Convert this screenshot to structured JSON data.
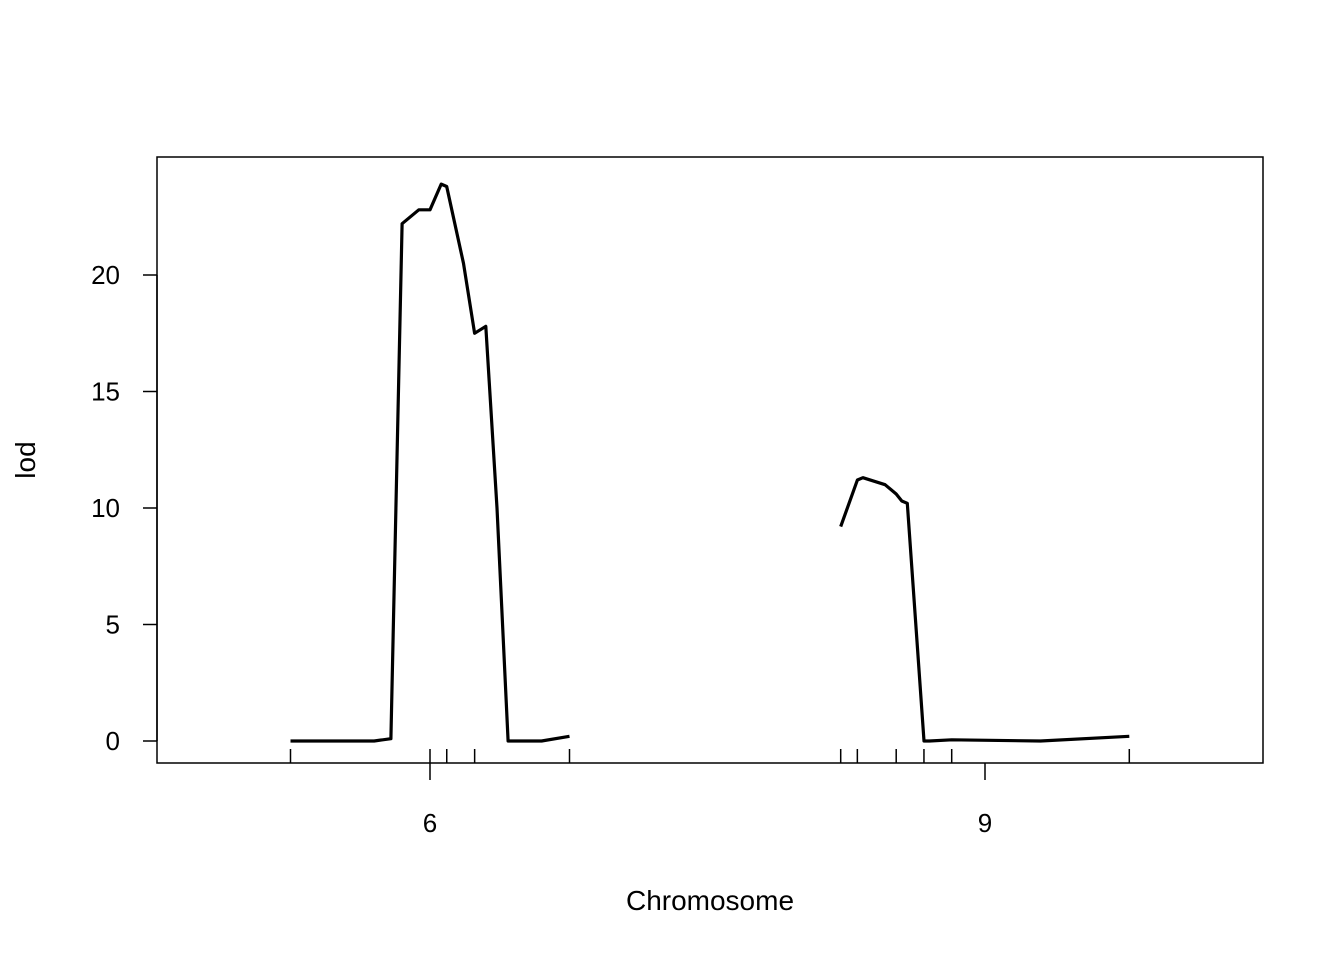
{
  "chart_data": {
    "type": "line",
    "xlabel": "Chromosome",
    "ylabel": "lod",
    "ylim": [
      -1,
      25
    ],
    "y_ticks": [
      0,
      5,
      10,
      15,
      20
    ],
    "chromosomes": [
      {
        "label": "6",
        "range": [
          -25,
          25
        ],
        "marker_positions": [
          -25,
          0,
          3,
          8,
          25
        ],
        "positions": [
          -25,
          -17,
          -10,
          -7,
          -5,
          -2,
          0,
          2,
          3,
          6,
          8,
          10,
          12,
          14,
          20,
          25
        ],
        "lod": [
          0,
          0,
          0,
          0.1,
          22.2,
          22.8,
          22.8,
          23.9,
          23.8,
          20.5,
          17.5,
          17.8,
          10,
          0,
          0,
          0.2
        ]
      },
      {
        "label": "9",
        "range": [
          -26,
          26
        ],
        "marker_positions": [
          -26,
          -23,
          -16,
          -11,
          -6,
          26
        ],
        "positions": [
          -26,
          -23,
          -22,
          -18,
          -16,
          -15,
          -14,
          -11,
          -10,
          -6,
          10,
          26
        ],
        "lod": [
          9.2,
          11.2,
          11.3,
          11.0,
          10.6,
          10.3,
          10.2,
          0,
          0,
          0.05,
          0,
          0.2
        ]
      }
    ]
  }
}
